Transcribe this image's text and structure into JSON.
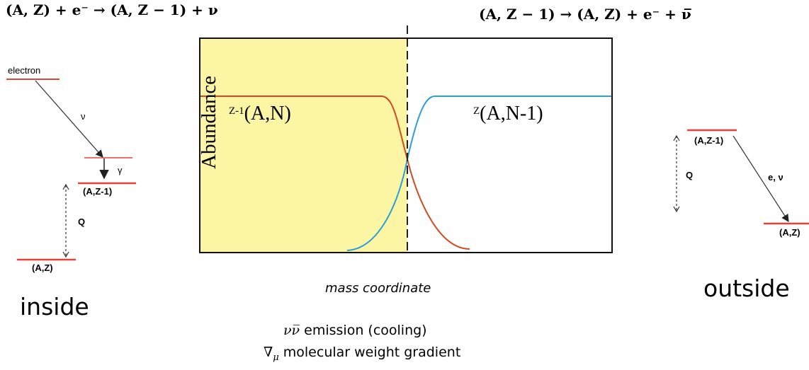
{
  "equations": {
    "capture": "(A, Z) + e⁻ → (A, Z − 1) + ν",
    "decay": "(A, Z − 1) → (A, Z) + e⁻ + ν̅"
  },
  "inside": {
    "label": "inside",
    "electron": "electron",
    "nu": "ν",
    "gamma": "γ",
    "q": "Q",
    "level_upper": "(A,Z-1)",
    "level_lower": "(A,Z)"
  },
  "outside": {
    "label": "outside",
    "level_upper": "(A,Z-1)",
    "level_lower": "(A,Z)",
    "q": "Q",
    "e_nu": "e, ν"
  },
  "chart_data": {
    "type": "line",
    "ylabel": "Abundance",
    "xlabel": "mass coordinate",
    "series": [
      {
        "name": "Z-1(A,N)",
        "color": "#d14a1e"
      },
      {
        "name": "Z(A,N-1)",
        "color": "#2a9fd6"
      }
    ],
    "labels": {
      "left_sup": "Z-1",
      "left_main": "(A,N)",
      "right_sup": "Z",
      "right_main": "(A,N-1)"
    },
    "shaded_region_color": "#fbf5a4"
  },
  "notes": {
    "line1_symbol": "νν̅",
    "line1_text": " emission (cooling)",
    "line2_symbol": "∇",
    "line2_sub": "μ",
    "line2_text": "  molecular weight gradient"
  }
}
